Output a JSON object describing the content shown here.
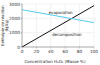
{
  "chart_data": {
    "type": "line",
    "xlabel": "Concentration H₂O₂ (Masse %)",
    "ylabel": "Enthalpie de réaction\n(kJ/kg)",
    "xlim": [
      0,
      100
    ],
    "ylim": [
      0,
      3000
    ],
    "xticks": [
      0,
      20,
      40,
      60,
      80,
      100
    ],
    "yticks": [
      0,
      1000,
      2000,
      3000
    ],
    "grid": true,
    "series": [
      {
        "x": [
          0,
          100
        ],
        "values": [
          0,
          2885
        ],
        "color": "#111111"
      },
      {
        "x": [
          0,
          100
        ],
        "values": [
          2600,
          1700
        ],
        "color": "#55ccee"
      }
    ],
    "annotations": [
      {
        "text": "evaporation",
        "x": 37,
        "y": 2420,
        "color": "#111111"
      },
      {
        "text": "decomposition",
        "x": 42,
        "y": 900,
        "color": "#111111"
      }
    ]
  }
}
